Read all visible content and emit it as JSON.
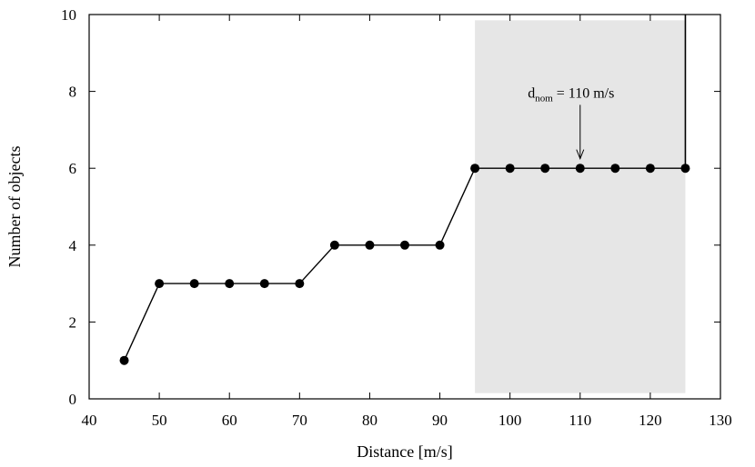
{
  "chart_data": {
    "type": "line",
    "title": "",
    "xlabel": "Distance [m/s]",
    "ylabel": "Number of objects",
    "xlim": [
      40,
      130
    ],
    "ylim": [
      0,
      10
    ],
    "xticks": [
      40,
      50,
      60,
      70,
      80,
      90,
      100,
      110,
      120,
      130
    ],
    "yticks": [
      0,
      2,
      4,
      6,
      8,
      10
    ],
    "grid": false,
    "legend": "none",
    "series": [
      {
        "x": [
          45,
          50,
          55,
          60,
          65,
          70,
          75,
          80,
          85,
          90,
          95,
          100,
          105,
          110,
          115,
          120,
          125
        ],
        "y": [
          1,
          3,
          3,
          3,
          3,
          3,
          4,
          4,
          4,
          4,
          6,
          6,
          6,
          6,
          6,
          6,
          6
        ],
        "marker": "filled-circle",
        "color": "#000000"
      }
    ],
    "vertical_line": {
      "x": 125,
      "y_from": 6,
      "y_to": 10
    },
    "shaded_region": {
      "x_from": 95,
      "x_to": 125,
      "y_from": 0.15,
      "y_to": 9.85,
      "color": "#e6e6e6"
    },
    "annotation": {
      "text_main": "d",
      "text_sub": "nom",
      "text_rest": " = 110 m/s",
      "arrow_to": [
        110,
        6.25
      ],
      "arrow_from_y": 7.65
    }
  }
}
